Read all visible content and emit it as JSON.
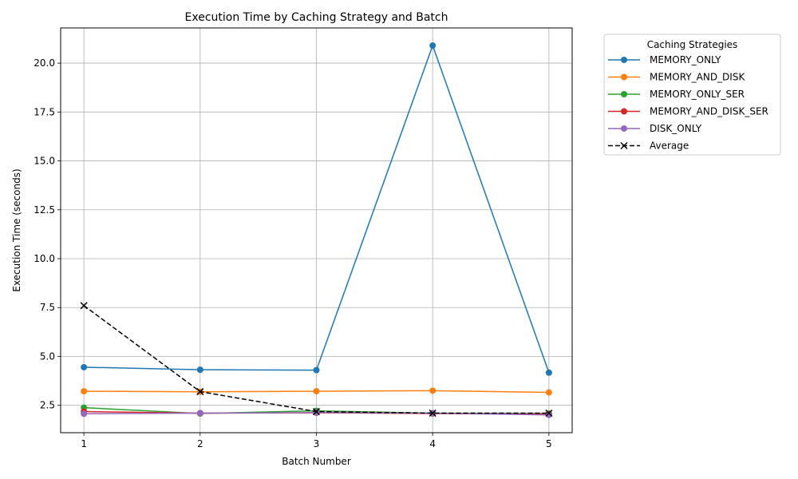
{
  "chart_data": {
    "type": "line",
    "title": "Execution Time by Caching Strategy and Batch",
    "xlabel": "Batch Number",
    "ylabel": "Execution Time (seconds)",
    "x": [
      1,
      2,
      3,
      4,
      5
    ],
    "x_tick_labels": [
      "1",
      "2",
      "3",
      "4",
      "5"
    ],
    "xlim": [
      0.8,
      5.2
    ],
    "ylim": [
      1.1,
      21.8
    ],
    "y_ticks": [
      2.5,
      5.0,
      7.5,
      10.0,
      12.5,
      15.0,
      17.5,
      20.0
    ],
    "y_tick_labels": [
      "2.5",
      "5.0",
      "7.5",
      "10.0",
      "12.5",
      "15.0",
      "17.5",
      "20.0"
    ],
    "grid": true,
    "legend_title": "Caching Strategies",
    "legend_position": "outside-top-right",
    "series": [
      {
        "name": "MEMORY_ONLY",
        "color": "#1f77b4",
        "marker": "circle",
        "line_style": "solid",
        "values": [
          4.45,
          4.32,
          4.3,
          20.9,
          4.17
        ]
      },
      {
        "name": "MEMORY_AND_DISK",
        "color": "#ff7f0e",
        "marker": "circle",
        "line_style": "solid",
        "values": [
          3.22,
          3.19,
          3.22,
          3.25,
          3.16
        ]
      },
      {
        "name": "MEMORY_ONLY_SER",
        "color": "#2ca02c",
        "marker": "circle",
        "line_style": "solid",
        "values": [
          2.38,
          2.08,
          2.22,
          2.1,
          2.08
        ]
      },
      {
        "name": "MEMORY_AND_DISK_SER",
        "color": "#d62728",
        "marker": "circle",
        "line_style": "solid",
        "values": [
          2.18,
          2.1,
          2.12,
          2.08,
          2.05
        ]
      },
      {
        "name": "DISK_ONLY",
        "color": "#9467bd",
        "marker": "circle",
        "line_style": "solid",
        "values": [
          2.07,
          2.1,
          2.13,
          2.1,
          2.01
        ]
      },
      {
        "name": "Average",
        "color": "#000000",
        "marker": "x",
        "line_style": "dashed",
        "values": [
          7.6,
          3.2,
          2.18,
          2.1,
          2.1
        ]
      }
    ]
  }
}
